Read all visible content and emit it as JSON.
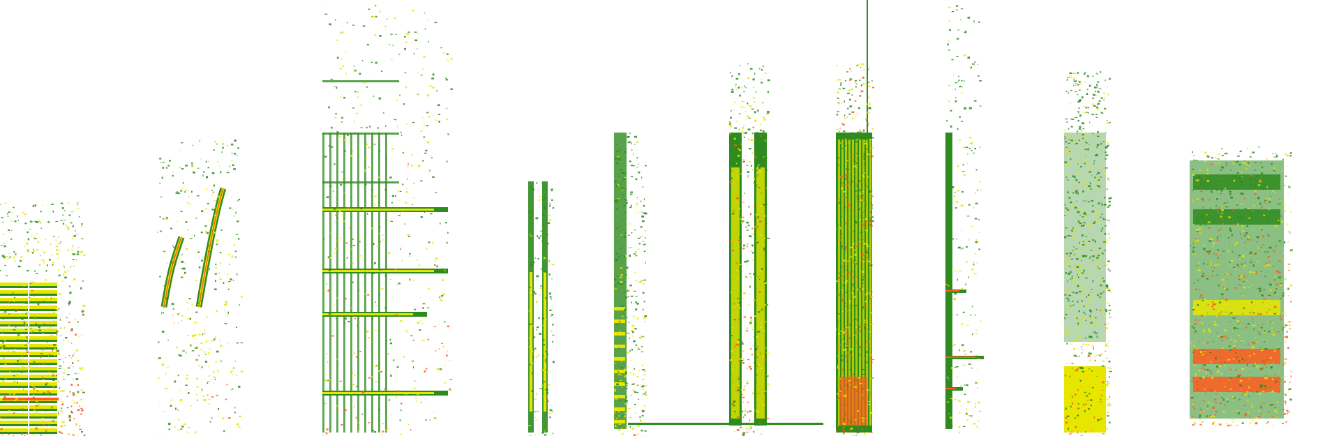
{
  "image": {
    "kind": "spectrogram",
    "background": "#ffffff",
    "palette": {
      "low": "#2e8b1e",
      "mid": "#e6e600",
      "high": "#ff5a1f"
    },
    "segments": [
      {
        "id": "harmonic-stack-pair",
        "style": "harmonic-columns",
        "intensity": 0.75
      },
      {
        "id": "frequency-sweeps",
        "style": "sweeps",
        "intensity": 0.6
      },
      {
        "id": "tonal-harmonic-series",
        "style": "tonal-bands",
        "intensity": 0.7
      },
      {
        "id": "narrow-vertical-pair",
        "style": "narrow-columns",
        "intensity": 0.55
      },
      {
        "id": "clicks-column",
        "style": "noise-column",
        "intensity": 0.5
      },
      {
        "id": "twin-broadband-columns",
        "style": "broadband-pair",
        "intensity": 0.8
      },
      {
        "id": "dense-broadband-block",
        "style": "broadband",
        "intensity": 0.95
      },
      {
        "id": "thin-tonal-column",
        "style": "thin-tonal",
        "intensity": 0.55
      },
      {
        "id": "diffuse-noise-column",
        "style": "diffuse",
        "intensity": 0.6
      },
      {
        "id": "patchy-broadband-cluster",
        "style": "patchy",
        "intensity": 0.9
      }
    ]
  }
}
